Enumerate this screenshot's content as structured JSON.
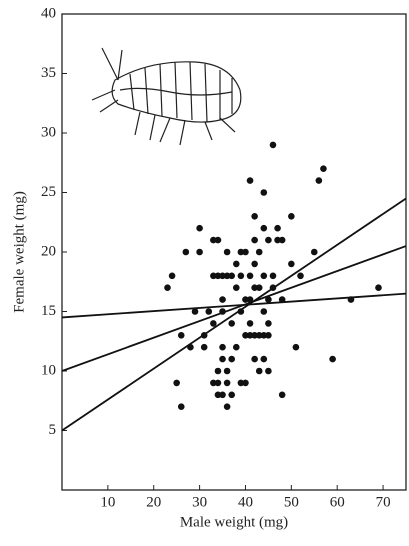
{
  "chart_data": {
    "type": "scatter",
    "x_label": "Male weight (mg)",
    "y_label": "Female weight (mg)",
    "xlim": [
      0,
      75
    ],
    "ylim": [
      0,
      40
    ],
    "xticks": [
      10,
      20,
      30,
      40,
      50,
      60,
      70
    ],
    "yticks": [
      5,
      10,
      15,
      20,
      25,
      30,
      35,
      40
    ],
    "color": "#111111",
    "x": [
      23,
      24,
      25,
      26,
      26,
      27,
      28,
      29,
      30,
      30,
      31,
      31,
      32,
      33,
      33,
      33,
      34,
      34,
      33,
      34,
      34,
      34,
      35,
      35,
      35,
      35,
      35,
      35,
      36,
      36,
      36,
      36,
      36,
      37,
      37,
      37,
      37,
      38,
      38,
      38,
      39,
      39,
      39,
      39,
      40,
      40,
      40,
      40,
      41,
      41,
      41,
      41,
      41,
      42,
      42,
      42,
      42,
      42,
      42,
      43,
      43,
      43,
      43,
      44,
      44,
      44,
      44,
      44,
      44,
      45,
      45,
      45,
      45,
      45,
      46,
      46,
      46,
      47,
      47,
      48,
      48,
      48,
      50,
      50,
      51,
      52,
      55,
      56,
      57,
      59,
      63,
      69
    ],
    "y": [
      17,
      18,
      9,
      7,
      13,
      20,
      12,
      15,
      22,
      20,
      12,
      13,
      15,
      14,
      18,
      21,
      21,
      18,
      9,
      10,
      9,
      8,
      8,
      15,
      18,
      12,
      11,
      16,
      20,
      18,
      10,
      9,
      7,
      14,
      8,
      11,
      18,
      17,
      19,
      12,
      20,
      18,
      15,
      9,
      9,
      16,
      20,
      13,
      26,
      18,
      16,
      14,
      13,
      23,
      21,
      19,
      17,
      13,
      11,
      20,
      17,
      13,
      10,
      25,
      22,
      18,
      15,
      13,
      11,
      21,
      16,
      14,
      10,
      13,
      29,
      18,
      17,
      22,
      21,
      8,
      16,
      21,
      23,
      19,
      12,
      18,
      20,
      26,
      27,
      11,
      16,
      17
    ],
    "lines": [
      {
        "x": [
          0,
          75
        ],
        "y": [
          5,
          24.5
        ]
      },
      {
        "x": [
          0,
          75
        ],
        "y": [
          10,
          20.5
        ]
      },
      {
        "x": [
          0,
          75
        ],
        "y": [
          14.5,
          16.5
        ]
      }
    ]
  }
}
